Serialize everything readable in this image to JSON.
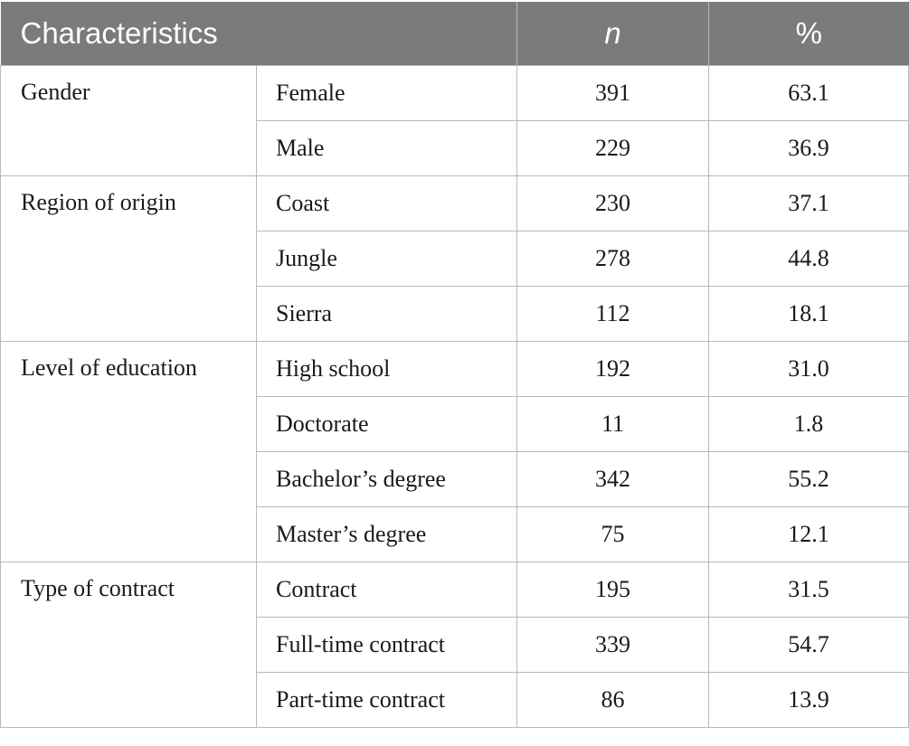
{
  "header": {
    "characteristics": "Characteristics",
    "n": "n",
    "percent": "%"
  },
  "groups": [
    {
      "label": "Gender",
      "rows": [
        {
          "sub": "Female",
          "n": "391",
          "pct": "63.1"
        },
        {
          "sub": "Male",
          "n": "229",
          "pct": "36.9"
        }
      ]
    },
    {
      "label": "Region of origin",
      "rows": [
        {
          "sub": "Coast",
          "n": "230",
          "pct": "37.1"
        },
        {
          "sub": "Jungle",
          "n": "278",
          "pct": "44.8"
        },
        {
          "sub": "Sierra",
          "n": "112",
          "pct": "18.1"
        }
      ]
    },
    {
      "label": "Level of education",
      "rows": [
        {
          "sub": "High school",
          "n": "192",
          "pct": "31.0"
        },
        {
          "sub": "Doctorate",
          "n": "11",
          "pct": "1.8"
        },
        {
          "sub": "Bachelor’s degree",
          "n": "342",
          "pct": "55.2"
        },
        {
          "sub": "Master’s degree",
          "n": "75",
          "pct": "12.1"
        }
      ]
    },
    {
      "label": "Type of contract",
      "rows": [
        {
          "sub": "Contract",
          "n": "195",
          "pct": "31.5"
        },
        {
          "sub": "Full-time contract",
          "n": "339",
          "pct": "54.7"
        },
        {
          "sub": "Part-time contract",
          "n": "86",
          "pct": "13.9"
        }
      ]
    }
  ]
}
